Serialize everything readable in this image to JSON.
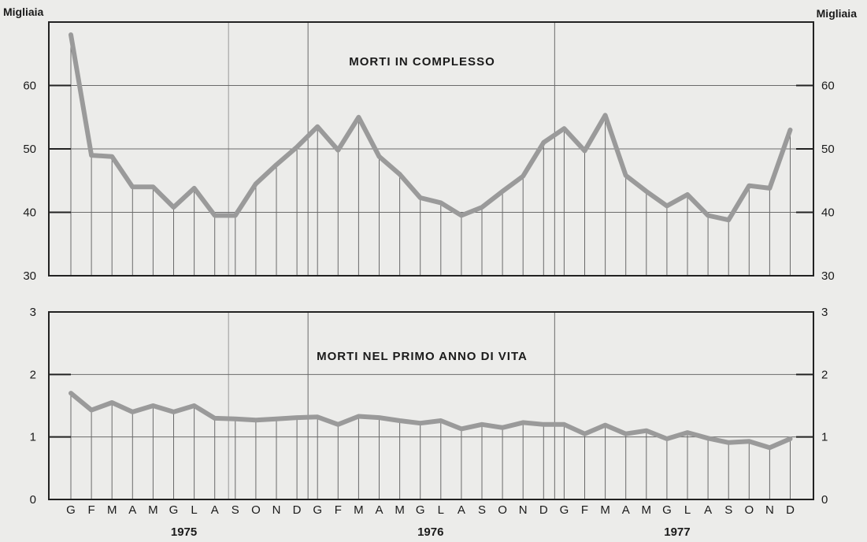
{
  "chart_data": [
    {
      "type": "line",
      "title": "MORTI IN COMPLESSO",
      "unit_label_left": "Migliaia",
      "unit_label_right": "Migliaia",
      "ylim": [
        30,
        70
      ],
      "yticks": [
        30,
        40,
        50,
        60
      ],
      "series": [
        {
          "values": [
            68,
            49,
            48.8,
            44,
            44,
            40.8,
            43.8,
            39.5,
            39.5,
            44.5,
            47.5,
            50.3,
            53.5,
            49.8,
            55,
            48.8,
            46,
            42.3,
            41.5,
            39.5,
            40.8,
            43.3,
            45.7,
            51,
            53.2,
            49.7,
            55.3,
            45.8,
            43.3,
            41,
            42.8,
            39.5,
            38.8,
            44.2,
            43.8,
            53
          ]
        }
      ]
    },
    {
      "type": "line",
      "title": "MORTI NEL PRIMO ANNO DI VITA",
      "ylim": [
        0,
        3
      ],
      "yticks": [
        0,
        1,
        2,
        3
      ],
      "series": [
        {
          "values": [
            1.7,
            1.43,
            1.55,
            1.4,
            1.5,
            1.4,
            1.5,
            1.3,
            1.29,
            1.27,
            1.29,
            1.31,
            1.32,
            1.2,
            1.33,
            1.31,
            1.26,
            1.22,
            1.26,
            1.13,
            1.2,
            1.15,
            1.23,
            1.2,
            1.2,
            1.05,
            1.19,
            1.05,
            1.1,
            0.97,
            1.07,
            0.98,
            0.91,
            0.93,
            0.83,
            0.97
          ]
        }
      ]
    }
  ],
  "x_axis": {
    "months": [
      "G",
      "F",
      "M",
      "A",
      "M",
      "G",
      "L",
      "A",
      "S",
      "O",
      "N",
      "D",
      "G",
      "F",
      "M",
      "A",
      "M",
      "G",
      "L",
      "A",
      "S",
      "O",
      "N",
      "D",
      "G",
      "F",
      "M",
      "A",
      "M",
      "G",
      "L",
      "A",
      "S",
      "O",
      "N",
      "D"
    ],
    "years": [
      "1975",
      "1976",
      "1977"
    ]
  },
  "colors": {
    "line": "#9a9a9a",
    "frame": "#222222",
    "grid": "#6a6a6a",
    "background": "#ececea"
  }
}
